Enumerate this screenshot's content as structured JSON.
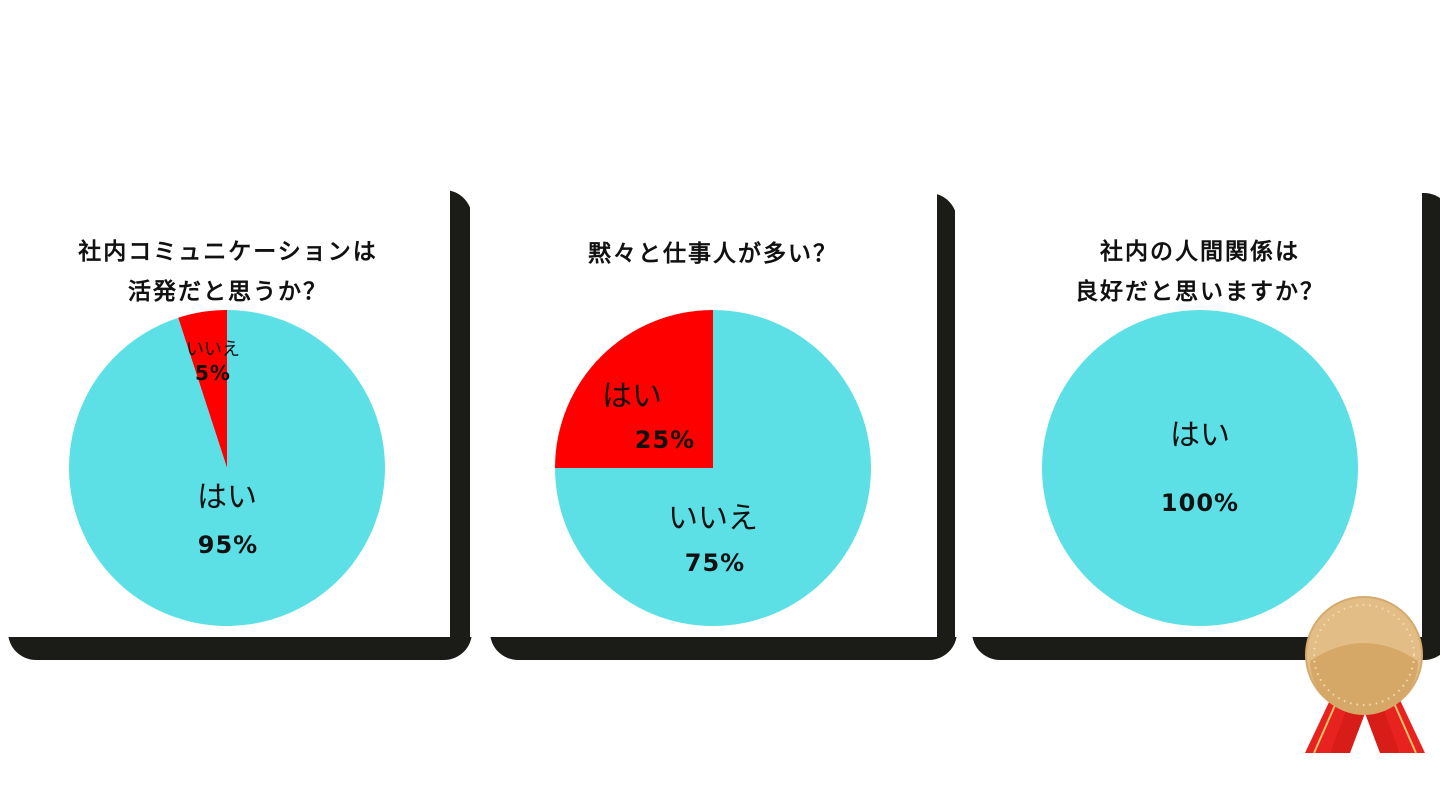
{
  "colors": {
    "yes_or_main": "#5ce0e6",
    "minor": "#ff0000",
    "frame": "#1b1b17"
  },
  "chart_data": [
    {
      "type": "pie",
      "title": "社内コミュニケーションは\n活発だと思うか？",
      "title_lines": [
        "社内コミュニケーションは",
        "活発だと思うか？"
      ],
      "slices": [
        {
          "label": "いいえ",
          "value": 5,
          "value_label": "5%",
          "color": "#ff0000"
        },
        {
          "label": "はい",
          "value": 95,
          "value_label": "95%",
          "color": "#5ce0e6"
        }
      ]
    },
    {
      "type": "pie",
      "title": "黙々と仕事人が多い？",
      "title_lines": [
        "黙々と仕事人が多い？"
      ],
      "slices": [
        {
          "label": "はい",
          "value": 25,
          "value_label": "25%",
          "color": "#ff0000"
        },
        {
          "label": "いいえ",
          "value": 75,
          "value_label": "75%",
          "color": "#5ce0e6"
        }
      ]
    },
    {
      "type": "pie",
      "title": "社内の人間関係は\n良好だと思いますか？",
      "title_lines": [
        "社内の人間関係は",
        "良好だと思いますか？"
      ],
      "slices": [
        {
          "label": "はい",
          "value": 100,
          "value_label": "100%",
          "color": "#5ce0e6"
        }
      ]
    }
  ],
  "decoration": {
    "medal_icon": "bronze-medal-ribbon"
  }
}
